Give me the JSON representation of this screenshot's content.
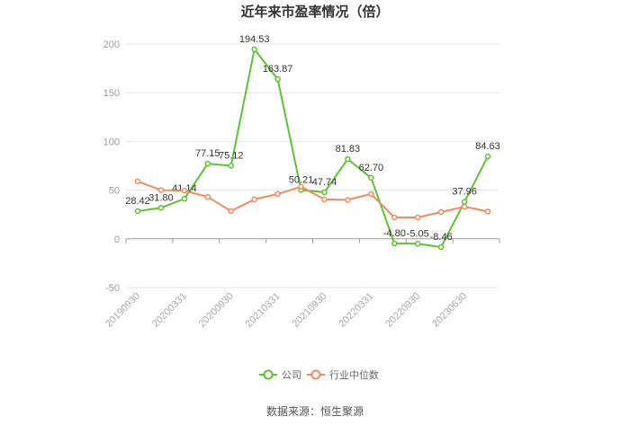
{
  "chart_data": {
    "type": "line",
    "title": "近年来市盈率情况（倍）",
    "categories": [
      "20190930",
      "",
      "20200331",
      "",
      "20200930",
      "",
      "20210331",
      "",
      "20210930",
      "",
      "20220331",
      "",
      "20220930",
      "",
      "20230630",
      ""
    ],
    "y_ticks": [
      -50,
      0,
      50,
      100,
      150,
      200
    ],
    "ylim": [
      -50,
      200
    ],
    "grid": true,
    "legend_position": "bottom",
    "series": [
      {
        "name": "公司",
        "color": "#5ec234",
        "values": [
          28.42,
          31.8,
          41.14,
          77.15,
          75.12,
          194.53,
          163.87,
          50.21,
          47.74,
          81.83,
          62.7,
          -4.8,
          -5.05,
          -8.46,
          37.96,
          84.63
        ],
        "labels": [
          "28.42",
          "31.80",
          "41.14",
          "77.15",
          "75.12",
          "194.53",
          "163.87",
          "50.21",
          "47.74",
          "81.83",
          "62.70",
          "-4.80",
          "-5.05",
          "-8.46",
          "37.96",
          "84.63"
        ]
      },
      {
        "name": "行业中位数",
        "color": "#f28a5e",
        "values": [
          59,
          50,
          49.5,
          43,
          28.5,
          40.5,
          46,
          53.5,
          40.5,
          40,
          46,
          22,
          22,
          27.5,
          33,
          28
        ]
      }
    ]
  },
  "source": "数据来源：恒生聚源"
}
